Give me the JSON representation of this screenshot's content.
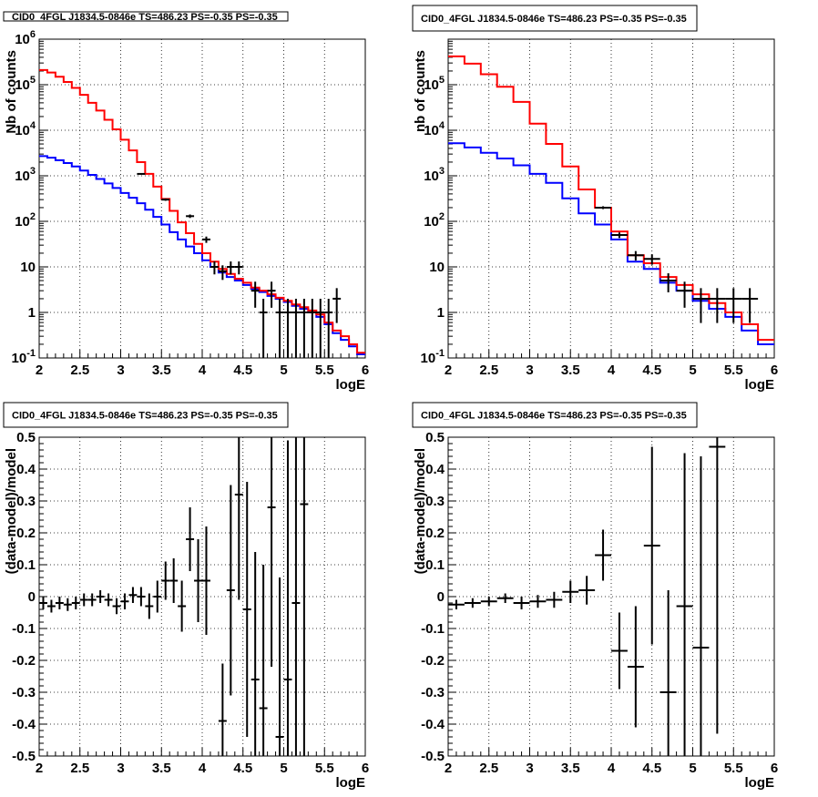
{
  "colors": {
    "model_total": "#ff0000",
    "model_component": "#0000ff",
    "data": "#000000",
    "grid": "#000000"
  },
  "chart_data": [
    {
      "type": "line",
      "title": "CID0_4FGL J1834.5-0846e TS=486.23 PS=-0.35 PS=-0.35",
      "xlabel": "logE",
      "ylabel": "Nb of counts",
      "xlim": [
        2,
        6
      ],
      "ylim": [
        0.1,
        1000000
      ],
      "yscale": "log",
      "grid": true,
      "x_ticks": [
        "2",
        "2.5",
        "3",
        "3.5",
        "4",
        "4.5",
        "5",
        "5.5",
        "6"
      ],
      "y_ticks": [
        "10^-1",
        "1",
        "10",
        "10^2",
        "10^3",
        "10^4",
        "10^5",
        "10^6"
      ],
      "bin_edges": [
        2.0,
        2.1,
        2.2,
        2.3,
        2.4,
        2.5,
        2.6,
        2.7,
        2.8,
        2.9,
        3.0,
        3.1,
        3.2,
        3.3,
        3.4,
        3.5,
        3.6,
        3.7,
        3.8,
        3.9,
        4.0,
        4.1,
        4.2,
        4.3,
        4.4,
        4.5,
        4.6,
        4.7,
        4.8,
        4.9,
        5.0,
        5.1,
        5.2,
        5.3,
        5.4,
        5.5,
        5.6,
        5.7,
        5.8,
        5.9,
        6.0
      ],
      "series": [
        {
          "values": [
            210000,
            185000,
            150000,
            115000,
            85000,
            60000,
            40000,
            27000,
            17000,
            10500,
            6200,
            3600,
            2000,
            1100,
            580,
            310,
            170,
            95,
            55,
            32,
            20,
            13,
            9,
            7,
            5.5,
            4.5,
            3.5,
            3.0,
            2.5,
            2.1,
            1.8,
            1.5,
            1.3,
            1.1,
            0.9,
            0.6,
            0.4,
            0.3,
            0.2,
            0.13
          ]
        },
        {
          "values": [
            2700,
            2500,
            2200,
            1900,
            1600,
            1300,
            1050,
            850,
            680,
            540,
            420,
            330,
            250,
            180,
            125,
            85,
            58,
            40,
            28,
            20,
            14,
            10,
            7.5,
            6,
            5,
            4,
            3.3,
            2.8,
            2.3,
            2.0,
            1.7,
            1.4,
            1.2,
            1.0,
            0.8,
            0.55,
            0.35,
            0.25,
            0.18,
            0.12
          ]
        }
      ],
      "data_points": [
        {
          "x": 3.25,
          "y": 1100
        },
        {
          "x": 3.55,
          "y": 300
        },
        {
          "x": 3.85,
          "y": 130
        },
        {
          "x": 4.05,
          "y": 40
        },
        {
          "x": 4.15,
          "y": 10
        },
        {
          "x": 4.25,
          "y": 8
        },
        {
          "x": 4.35,
          "y": 10
        },
        {
          "x": 4.45,
          "y": 10
        },
        {
          "x": 4.65,
          "y": 3
        },
        {
          "x": 4.75,
          "y": 1
        },
        {
          "x": 4.85,
          "y": 3
        },
        {
          "x": 4.95,
          "y": 1
        },
        {
          "x": 5.05,
          "y": 1
        },
        {
          "x": 5.15,
          "y": 1
        },
        {
          "x": 5.25,
          "y": 1
        },
        {
          "x": 5.35,
          "y": 1
        },
        {
          "x": 5.45,
          "y": 1
        },
        {
          "x": 5.55,
          "y": 1
        },
        {
          "x": 5.65,
          "y": 2
        }
      ]
    },
    {
      "type": "line",
      "title": "CID0_4FGL J1834.5-0846e TS=486.23 PS=-0.35 PS=-0.35",
      "xlabel": "logE",
      "ylabel": "nb of counts",
      "xlim": [
        2,
        6
      ],
      "ylim": [
        0.1,
        1000000
      ],
      "yscale": "log",
      "grid": true,
      "x_ticks": [
        "2",
        "2.5",
        "3",
        "3.5",
        "4",
        "4.5",
        "5",
        "5.5",
        "6"
      ],
      "y_ticks": [
        "10^-1",
        "1",
        "10",
        "10^2",
        "10^3",
        "10^4",
        "10^5"
      ],
      "bin_edges": [
        2.0,
        2.2,
        2.4,
        2.6,
        2.8,
        3.0,
        3.2,
        3.4,
        3.6,
        3.8,
        4.0,
        4.2,
        4.4,
        4.6,
        4.8,
        5.0,
        5.2,
        5.4,
        5.6,
        5.8,
        6.0
      ],
      "series": [
        {
          "values": [
            420000,
            290000,
            170000,
            90000,
            42000,
            14000,
            5000,
            1600,
            500,
            200,
            60,
            18,
            12,
            6,
            4,
            2.5,
            1.6,
            1.0,
            0.55,
            0.25
          ]
        },
        {
          "values": [
            5200,
            4200,
            3200,
            2400,
            1700,
            1100,
            700,
            320,
            150,
            85,
            40,
            13,
            9,
            4.5,
            3,
            1.8,
            1.2,
            0.8,
            0.4,
            0.2
          ]
        }
      ],
      "data_points": [
        {
          "x": 3.9,
          "y": 200
        },
        {
          "x": 4.1,
          "y": 50
        },
        {
          "x": 4.3,
          "y": 18
        },
        {
          "x": 4.5,
          "y": 15
        },
        {
          "x": 4.7,
          "y": 5
        },
        {
          "x": 4.9,
          "y": 3
        },
        {
          "x": 5.1,
          "y": 2
        },
        {
          "x": 5.3,
          "y": 2
        },
        {
          "x": 5.5,
          "y": 2
        },
        {
          "x": 5.7,
          "y": 2
        }
      ]
    },
    {
      "type": "scatter",
      "title": "CID0_4FGL J1834.5-0846e TS=486.23 PS=-0.35 PS=-0.35",
      "xlabel": "logE",
      "ylabel": "(data-model)/model",
      "xlim": [
        2,
        6
      ],
      "ylim": [
        -0.5,
        0.5
      ],
      "grid": true,
      "x_ticks": [
        "2",
        "2.5",
        "3",
        "3.5",
        "4",
        "4.5",
        "5",
        "5.5",
        "6"
      ],
      "y_ticks": [
        "-0.5",
        "-0.4",
        "-0.3",
        "-0.2",
        "-0.1",
        "0",
        "0.1",
        "0.2",
        "0.3",
        "0.4",
        "0.5"
      ],
      "points": [
        {
          "x": 2.05,
          "y": -0.02,
          "dx": 0.05,
          "dy": 0.02
        },
        {
          "x": 2.15,
          "y": -0.03,
          "dx": 0.05,
          "dy": 0.02
        },
        {
          "x": 2.25,
          "y": -0.02,
          "dx": 0.05,
          "dy": 0.02
        },
        {
          "x": 2.35,
          "y": -0.025,
          "dx": 0.05,
          "dy": 0.02
        },
        {
          "x": 2.45,
          "y": -0.02,
          "dx": 0.05,
          "dy": 0.02
        },
        {
          "x": 2.55,
          "y": -0.01,
          "dx": 0.05,
          "dy": 0.02
        },
        {
          "x": 2.65,
          "y": -0.01,
          "dx": 0.05,
          "dy": 0.02
        },
        {
          "x": 2.75,
          "y": 0.0,
          "dx": 0.05,
          "dy": 0.02
        },
        {
          "x": 2.85,
          "y": -0.01,
          "dx": 0.05,
          "dy": 0.02
        },
        {
          "x": 2.95,
          "y": -0.03,
          "dx": 0.05,
          "dy": 0.025
        },
        {
          "x": 3.05,
          "y": -0.015,
          "dx": 0.05,
          "dy": 0.025
        },
        {
          "x": 3.15,
          "y": 0.005,
          "dx": 0.05,
          "dy": 0.025
        },
        {
          "x": 3.25,
          "y": 0.0,
          "dx": 0.05,
          "dy": 0.03
        },
        {
          "x": 3.35,
          "y": -0.03,
          "dx": 0.05,
          "dy": 0.04
        },
        {
          "x": 3.45,
          "y": 0.0,
          "dx": 0.05,
          "dy": 0.05
        },
        {
          "x": 3.55,
          "y": 0.05,
          "dx": 0.05,
          "dy": 0.06
        },
        {
          "x": 3.65,
          "y": 0.05,
          "dx": 0.05,
          "dy": 0.07
        },
        {
          "x": 3.75,
          "y": -0.03,
          "dx": 0.05,
          "dy": 0.08
        },
        {
          "x": 3.85,
          "y": 0.18,
          "dx": 0.05,
          "dy": 0.1
        },
        {
          "x": 3.95,
          "y": 0.05,
          "dx": 0.05,
          "dy": 0.13
        },
        {
          "x": 4.05,
          "y": 0.05,
          "dx": 0.05,
          "dy": 0.17
        },
        {
          "x": 4.25,
          "y": -0.39,
          "dx": 0.05,
          "dy": 0.18
        },
        {
          "x": 4.35,
          "y": 0.02,
          "dx": 0.05,
          "dy": 0.33
        },
        {
          "x": 4.45,
          "y": 0.32,
          "dx": 0.05,
          "dy": 0.33
        },
        {
          "x": 4.55,
          "y": -0.04,
          "dx": 0.05,
          "dy": 0.4
        },
        {
          "x": 4.65,
          "y": -0.26,
          "dx": 0.05,
          "dy": 0.4
        },
        {
          "x": 4.75,
          "y": -0.35,
          "dx": 0.05,
          "dy": 0.45
        },
        {
          "x": 4.85,
          "y": 0.28,
          "dx": 0.05,
          "dy": 0.5
        },
        {
          "x": 4.95,
          "y": -0.44,
          "dx": 0.05,
          "dy": 0.5
        },
        {
          "x": 5.05,
          "y": -0.26,
          "dx": 0.05,
          "dy": 0.75
        },
        {
          "x": 5.15,
          "y": -0.02,
          "dx": 0.05,
          "dy": 0.6
        },
        {
          "x": 5.25,
          "y": 0.29,
          "dx": 0.05,
          "dy": 0.9
        }
      ]
    },
    {
      "type": "scatter",
      "title": "CID0_4FGL J1834.5-0846e TS=486.23 PS=-0.35 PS=-0.35",
      "xlabel": "logE",
      "ylabel": "(data-model)/model",
      "xlim": [
        2,
        6
      ],
      "ylim": [
        -0.5,
        0.5
      ],
      "grid": true,
      "x_ticks": [
        "2",
        "2.5",
        "3",
        "3.5",
        "4",
        "4.5",
        "5",
        "5.5",
        "6"
      ],
      "y_ticks": [
        "-0.5",
        "-0.4",
        "-0.3",
        "-0.2",
        "-0.1",
        "0",
        "0.1",
        "0.2",
        "0.3",
        "0.4",
        "0.5"
      ],
      "points": [
        {
          "x": 2.1,
          "y": -0.025,
          "dx": 0.1,
          "dy": 0.015
        },
        {
          "x": 2.3,
          "y": -0.02,
          "dx": 0.1,
          "dy": 0.015
        },
        {
          "x": 2.5,
          "y": -0.015,
          "dx": 0.1,
          "dy": 0.015
        },
        {
          "x": 2.7,
          "y": -0.005,
          "dx": 0.1,
          "dy": 0.015
        },
        {
          "x": 2.9,
          "y": -0.02,
          "dx": 0.1,
          "dy": 0.02
        },
        {
          "x": 3.1,
          "y": -0.015,
          "dx": 0.1,
          "dy": 0.02
        },
        {
          "x": 3.3,
          "y": -0.01,
          "dx": 0.1,
          "dy": 0.025
        },
        {
          "x": 3.5,
          "y": 0.015,
          "dx": 0.1,
          "dy": 0.035
        },
        {
          "x": 3.7,
          "y": 0.02,
          "dx": 0.1,
          "dy": 0.045
        },
        {
          "x": 3.9,
          "y": 0.13,
          "dx": 0.1,
          "dy": 0.08
        },
        {
          "x": 4.1,
          "y": -0.17,
          "dx": 0.1,
          "dy": 0.12
        },
        {
          "x": 4.3,
          "y": -0.22,
          "dx": 0.1,
          "dy": 0.19
        },
        {
          "x": 4.5,
          "y": 0.16,
          "dx": 0.1,
          "dy": 0.31
        },
        {
          "x": 4.7,
          "y": -0.3,
          "dx": 0.1,
          "dy": 0.32
        },
        {
          "x": 4.9,
          "y": -0.03,
          "dx": 0.1,
          "dy": 0.48
        },
        {
          "x": 5.1,
          "y": -0.16,
          "dx": 0.1,
          "dy": 0.6
        },
        {
          "x": 5.3,
          "y": 0.47,
          "dx": 0.1,
          "dy": 0.9
        }
      ]
    }
  ]
}
